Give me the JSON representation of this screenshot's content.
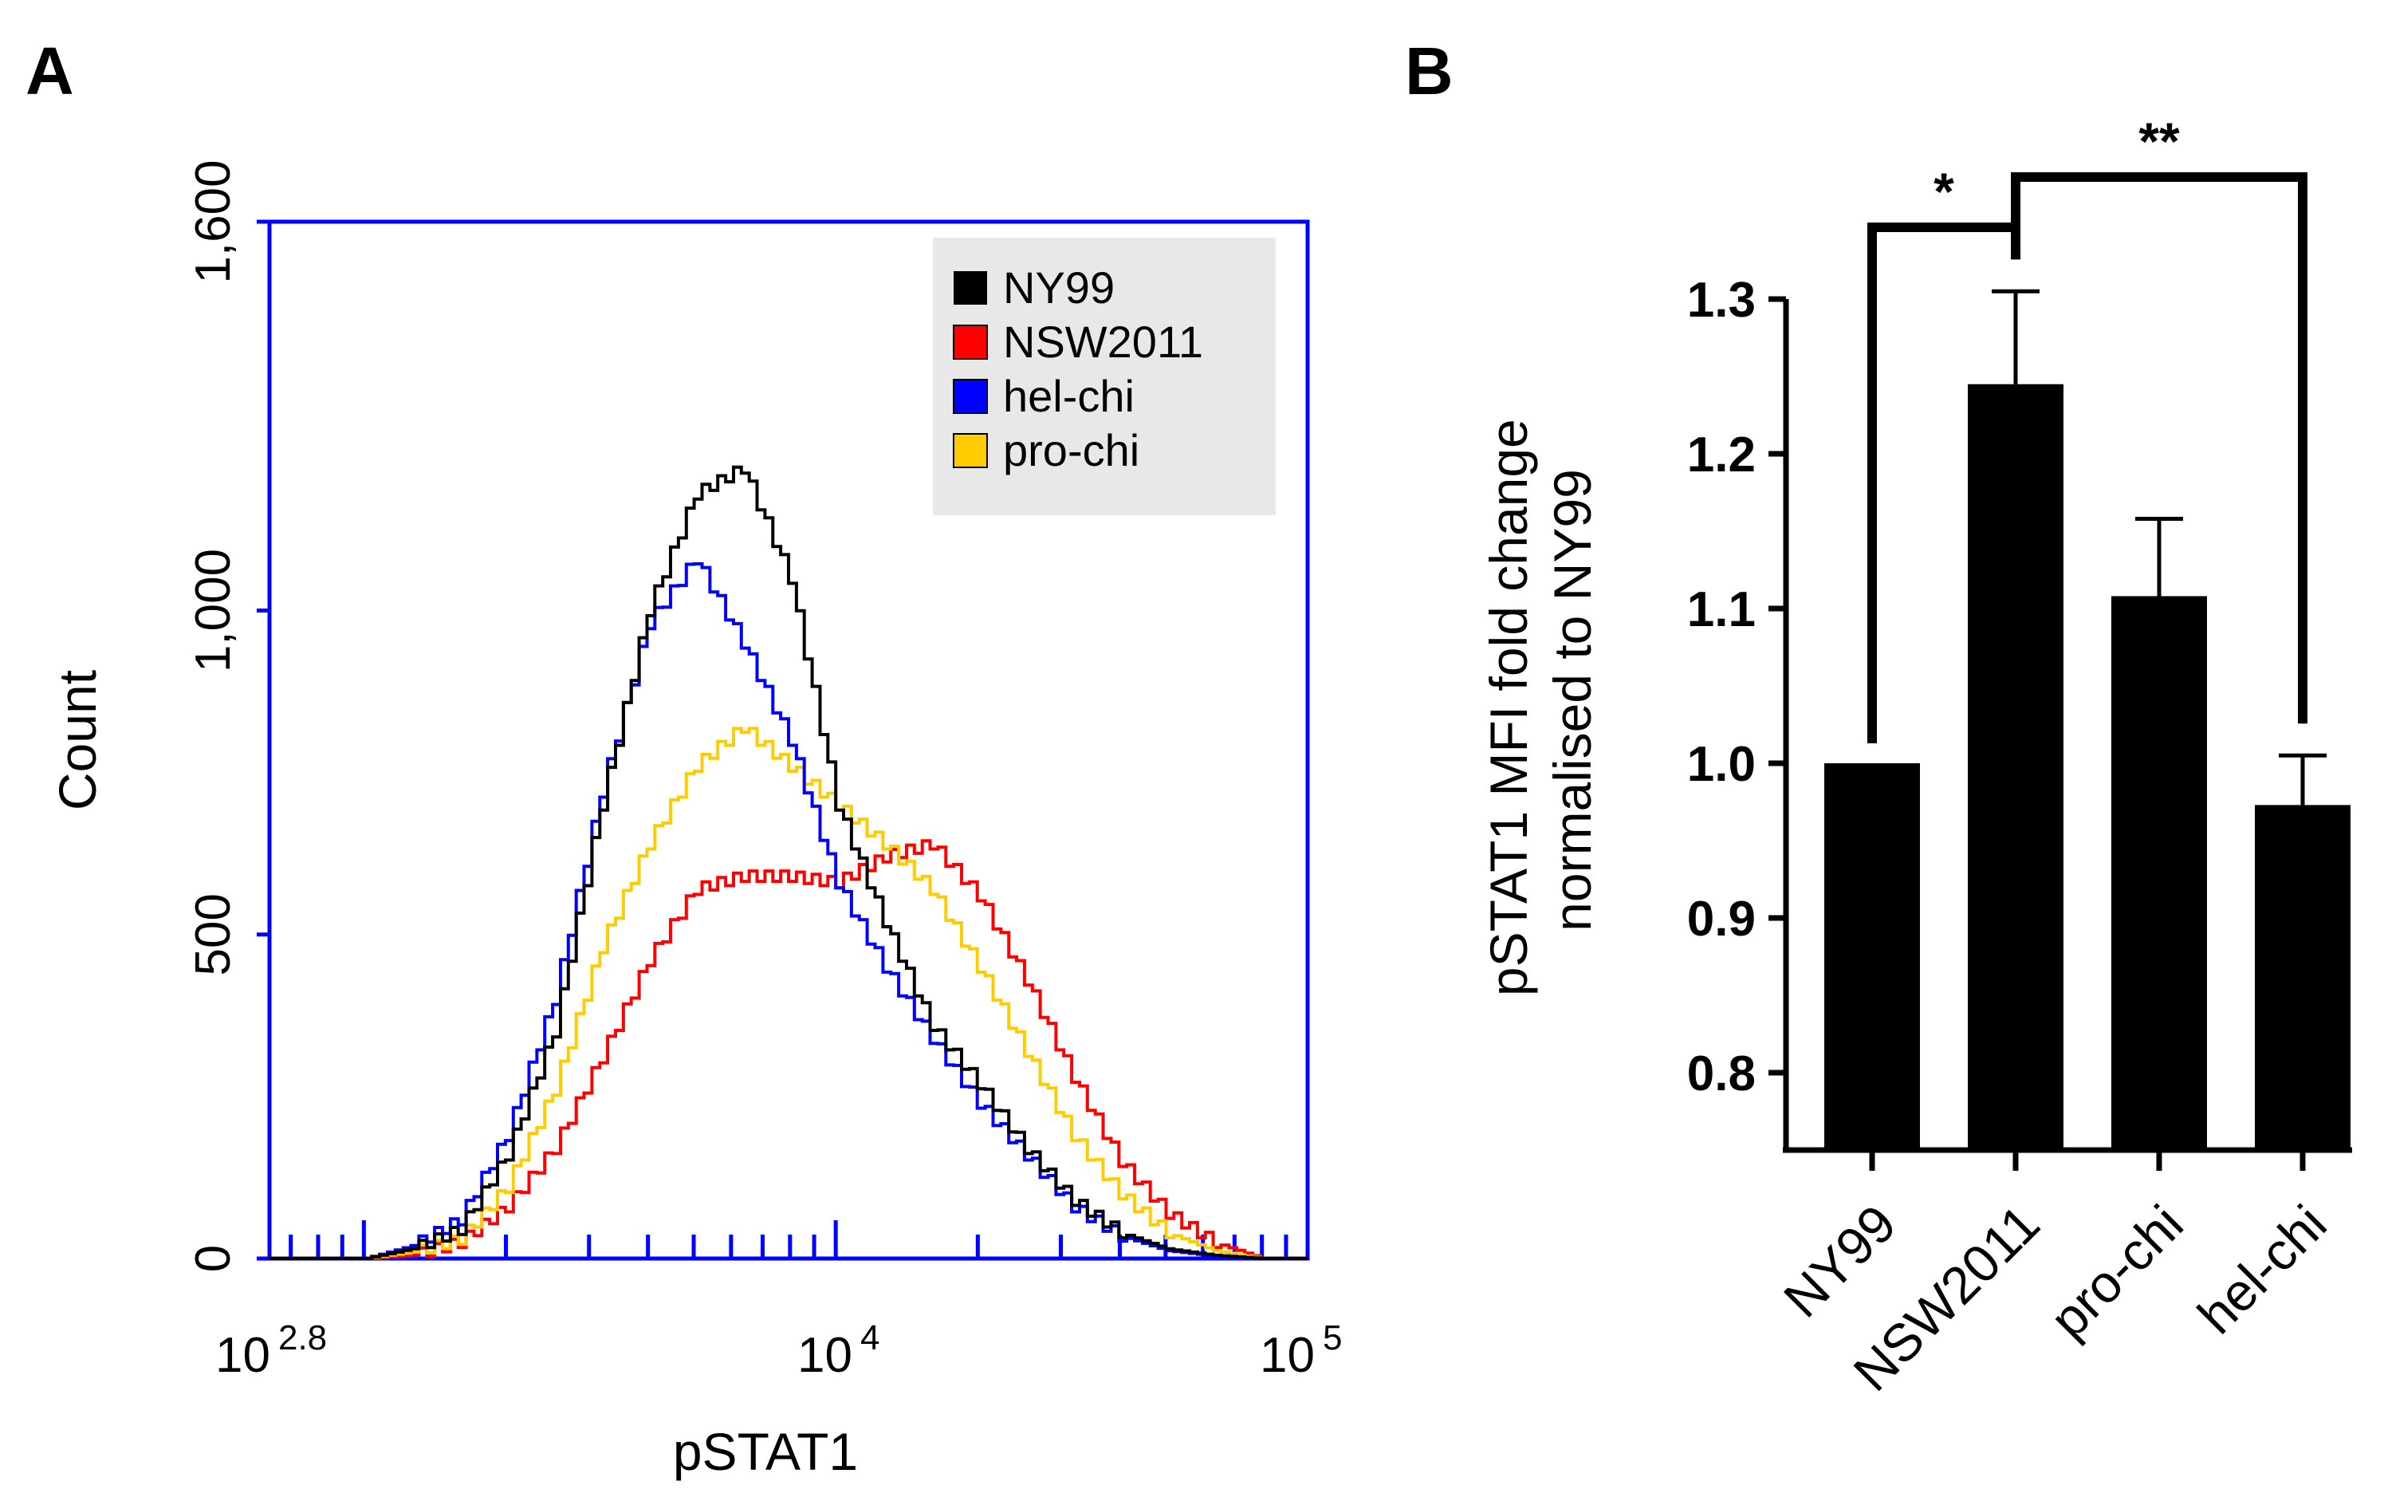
{
  "panels": {
    "a_label": "A",
    "b_label": "B"
  },
  "chart_data": [
    {
      "type": "line",
      "subtype": "flow-cytometry-histogram",
      "panel": "A",
      "xlabel": "pSTAT1",
      "ylabel": "Count",
      "x_scale": "log10",
      "xlim_log10": [
        2.8,
        5
      ],
      "ylim": [
        0,
        1600
      ],
      "y_ticks": [
        {
          "value": 0,
          "label": "0"
        },
        {
          "value": 500,
          "label": "500"
        },
        {
          "value": 1000,
          "label": "1,000"
        },
        {
          "value": 1600,
          "label": "1,600"
        }
      ],
      "x_tick_labels": [
        {
          "base": "10",
          "exp": "2.8",
          "log10": 2.8
        },
        {
          "base": "10",
          "exp": "4",
          "log10": 4
        },
        {
          "base": "10",
          "exp": "5",
          "log10": 5
        }
      ],
      "legend_position": "top-right",
      "axis_color": "#0000ff",
      "legend_bg": "#e8e8e8",
      "series": [
        {
          "name": "NY99",
          "color": "#000000",
          "x": [
            2.8,
            3.0,
            3.1,
            3.2,
            3.3,
            3.4,
            3.5,
            3.6,
            3.7,
            3.8,
            3.9,
            4.0,
            4.1,
            4.2,
            4.3,
            4.4,
            4.5,
            4.6,
            4.7,
            4.8,
            4.9,
            5.0
          ],
          "y": [
            0,
            0,
            15,
            45,
            160,
            350,
            700,
            1000,
            1180,
            1220,
            1050,
            700,
            520,
            360,
            270,
            170,
            90,
            40,
            15,
            5,
            0,
            0
          ]
        },
        {
          "name": "NSW2011",
          "color": "#ff0000",
          "x": [
            2.8,
            3.0,
            3.1,
            3.2,
            3.3,
            3.4,
            3.5,
            3.6,
            3.7,
            3.8,
            3.9,
            4.0,
            4.1,
            4.2,
            4.3,
            4.4,
            4.5,
            4.6,
            4.7,
            4.8,
            4.9,
            5.0
          ],
          "y": [
            0,
            0,
            5,
            25,
            80,
            170,
            310,
            460,
            570,
            590,
            590,
            580,
            620,
            640,
            560,
            430,
            280,
            150,
            70,
            25,
            0,
            0
          ]
        },
        {
          "name": "hel-chi",
          "color": "#0000ff",
          "x": [
            2.8,
            3.0,
            3.1,
            3.2,
            3.3,
            3.4,
            3.5,
            3.6,
            3.7,
            3.8,
            3.9,
            4.0,
            4.1,
            4.2,
            4.3,
            4.4,
            4.5,
            4.6,
            4.7,
            4.8,
            4.9,
            5.0
          ],
          "y": [
            0,
            0,
            20,
            60,
            190,
            400,
            720,
            980,
            1080,
            950,
            800,
            580,
            450,
            340,
            240,
            160,
            80,
            35,
            12,
            4,
            0,
            0
          ]
        },
        {
          "name": "pro-chi",
          "color": "#ffcc00",
          "x": [
            2.8,
            3.0,
            3.1,
            3.2,
            3.3,
            3.4,
            3.5,
            3.6,
            3.7,
            3.8,
            3.9,
            4.0,
            4.1,
            4.2,
            4.3,
            4.4,
            4.5,
            4.6,
            4.7,
            4.8,
            4.9,
            5.0
          ],
          "y": [
            0,
            0,
            10,
            30,
            110,
            260,
            480,
            640,
            760,
            820,
            760,
            700,
            640,
            570,
            450,
            320,
            190,
            100,
            40,
            12,
            0,
            0
          ]
        }
      ]
    },
    {
      "type": "bar",
      "panel": "B",
      "ylabel_lines": [
        "pSTAT1 MFI fold change",
        "normalised to NY99"
      ],
      "ylim": [
        0.75,
        1.3
      ],
      "y_ticks": [
        {
          "value": 0.8,
          "label": "0.8"
        },
        {
          "value": 0.9,
          "label": "0.9"
        },
        {
          "value": 1.0,
          "label": "1.0"
        },
        {
          "value": 1.1,
          "label": "1.1"
        },
        {
          "value": 1.2,
          "label": "1.2"
        },
        {
          "value": 1.3,
          "label": "1.3"
        }
      ],
      "categories": [
        "NY99",
        "NSW2011",
        "pro-chi",
        "hel-chi"
      ],
      "values": [
        1.0,
        1.245,
        1.108,
        0.973
      ],
      "errors": [
        0,
        0.06,
        0.05,
        0.032
      ],
      "bar_color": "#000000",
      "significance": [
        {
          "from": 0,
          "to": 1,
          "label": "*"
        },
        {
          "from": 1,
          "to": 3,
          "label": "**"
        }
      ]
    }
  ]
}
